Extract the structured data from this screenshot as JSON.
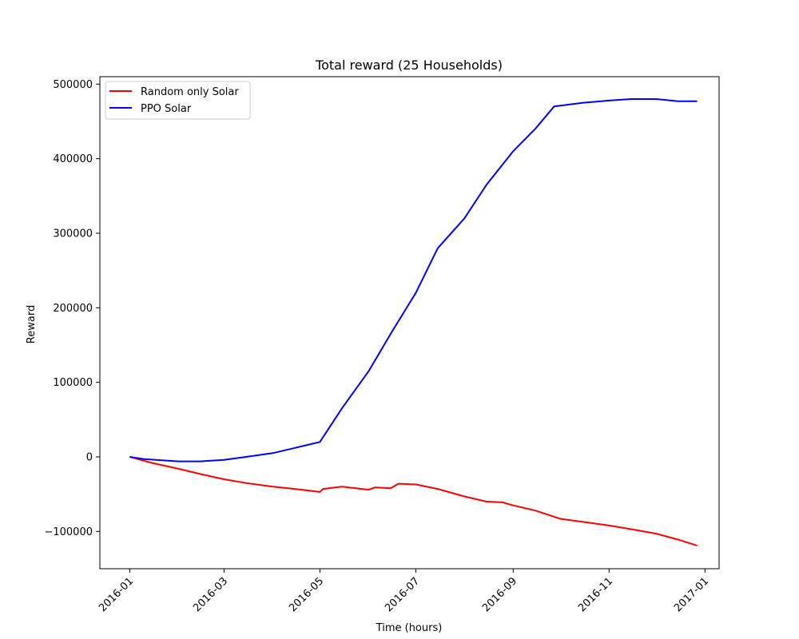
{
  "chart_data": {
    "type": "line",
    "title": "Total reward (25 Households)",
    "xlabel": "Time (hours)",
    "ylabel": "Reward",
    "x_type": "date",
    "xlim": [
      "2015-12-13",
      "2017-01-10"
    ],
    "ylim": [
      -150000,
      510000
    ],
    "x_ticks": [
      "2016-01",
      "2016-03",
      "2016-05",
      "2016-07",
      "2016-09",
      "2016-11",
      "2017-01"
    ],
    "y_ticks": [
      -100000,
      0,
      100000,
      200000,
      300000,
      400000,
      500000
    ],
    "y_tick_labels": [
      "−100000",
      "0",
      "100000",
      "200000",
      "300000",
      "400000",
      "500000"
    ],
    "grid": false,
    "legend_position": "top-left",
    "series": [
      {
        "name": "Random only Solar",
        "color": "#ff0000",
        "points": [
          [
            "2016-01-01",
            0
          ],
          [
            "2016-01-15",
            -8000
          ],
          [
            "2016-02-01",
            -16000
          ],
          [
            "2016-02-15",
            -23000
          ],
          [
            "2016-03-01",
            -30000
          ],
          [
            "2016-03-15",
            -35000
          ],
          [
            "2016-04-01",
            -40000
          ],
          [
            "2016-04-15",
            -43000
          ],
          [
            "2016-05-01",
            -47000
          ],
          [
            "2016-05-03",
            -43000
          ],
          [
            "2016-05-15",
            -40000
          ],
          [
            "2016-06-01",
            -44000
          ],
          [
            "2016-06-05",
            -41000
          ],
          [
            "2016-06-15",
            -42000
          ],
          [
            "2016-06-20",
            -36000
          ],
          [
            "2016-07-01",
            -37000
          ],
          [
            "2016-07-15",
            -43000
          ],
          [
            "2016-08-01",
            -53000
          ],
          [
            "2016-08-15",
            -60000
          ],
          [
            "2016-08-25",
            -61000
          ],
          [
            "2016-09-01",
            -65000
          ],
          [
            "2016-09-15",
            -72000
          ],
          [
            "2016-10-01",
            -83000
          ],
          [
            "2016-10-15",
            -87000
          ],
          [
            "2016-11-01",
            -92000
          ],
          [
            "2016-11-15",
            -97000
          ],
          [
            "2016-12-01",
            -103000
          ],
          [
            "2016-12-15",
            -111000
          ],
          [
            "2016-12-27",
            -119000
          ]
        ]
      },
      {
        "name": "PPO Solar",
        "color": "#0000ff",
        "points": [
          [
            "2016-01-01",
            0
          ],
          [
            "2016-01-10",
            -3000
          ],
          [
            "2016-02-01",
            -6000
          ],
          [
            "2016-02-15",
            -6000
          ],
          [
            "2016-03-01",
            -4000
          ],
          [
            "2016-03-15",
            0
          ],
          [
            "2016-04-01",
            5000
          ],
          [
            "2016-04-15",
            12000
          ],
          [
            "2016-05-01",
            20000
          ],
          [
            "2016-05-15",
            65000
          ],
          [
            "2016-06-01",
            115000
          ],
          [
            "2016-06-15",
            165000
          ],
          [
            "2016-07-01",
            220000
          ],
          [
            "2016-07-15",
            280000
          ],
          [
            "2016-08-01",
            320000
          ],
          [
            "2016-08-15",
            365000
          ],
          [
            "2016-09-01",
            410000
          ],
          [
            "2016-09-15",
            440000
          ],
          [
            "2016-09-27",
            470000
          ],
          [
            "2016-10-15",
            475000
          ],
          [
            "2016-11-01",
            478000
          ],
          [
            "2016-11-15",
            480000
          ],
          [
            "2016-12-01",
            480000
          ],
          [
            "2016-12-15",
            477000
          ],
          [
            "2016-12-27",
            477000
          ]
        ]
      }
    ]
  }
}
